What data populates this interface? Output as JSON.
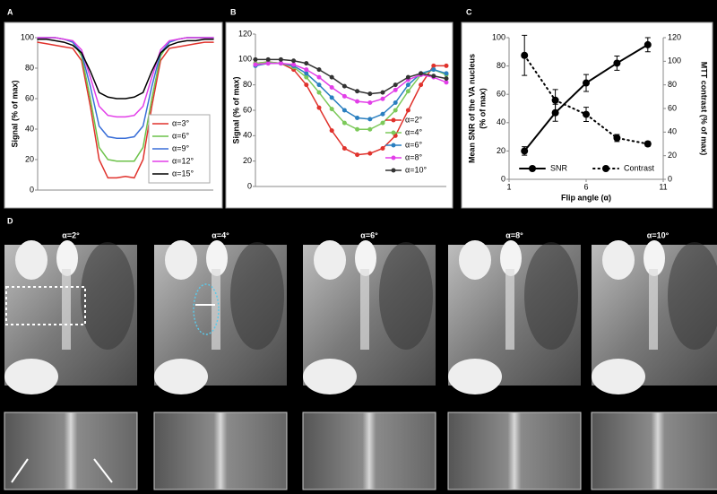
{
  "panel_labels": [
    "A",
    "B",
    "C",
    "D"
  ],
  "image_panel": {
    "titles": [
      "α=2°",
      "α=4°",
      "α=6°",
      "α=8°",
      "α=10°"
    ]
  },
  "chart_data": [
    {
      "type": "line",
      "y_label": "Signal (% of max)",
      "x": [
        0,
        1,
        2,
        3,
        4,
        5,
        6,
        7,
        8,
        9,
        10,
        11,
        12,
        13,
        14,
        15,
        16,
        17,
        18,
        19,
        20
      ],
      "xlim": [
        0,
        20
      ],
      "ylim": [
        0,
        100
      ],
      "yticks": [
        0,
        20,
        40,
        60,
        80,
        100
      ],
      "grid": false,
      "markers": false,
      "legend": "lower right",
      "series": [
        {
          "name": "α=3°",
          "color": "#e0322c",
          "values": [
            97,
            96,
            95,
            94,
            93,
            85,
            55,
            20,
            8,
            8,
            9,
            8,
            20,
            55,
            85,
            93,
            94,
            95,
            96,
            97,
            97
          ]
        },
        {
          "name": "α=6°",
          "color": "#6cc24a",
          "values": [
            100,
            100,
            100,
            99,
            97,
            88,
            60,
            28,
            20,
            19,
            19,
            19,
            28,
            60,
            88,
            97,
            99,
            100,
            100,
            100,
            100
          ]
        },
        {
          "name": "α=9°",
          "color": "#3a6fd8",
          "values": [
            100,
            100,
            100,
            99,
            97,
            90,
            68,
            42,
            35,
            34,
            34,
            35,
            42,
            68,
            90,
            97,
            99,
            100,
            100,
            100,
            100
          ]
        },
        {
          "name": "α=12°",
          "color": "#e23ee8",
          "values": [
            100,
            100,
            100,
            99,
            98,
            92,
            74,
            55,
            49,
            48,
            48,
            49,
            55,
            74,
            92,
            98,
            99,
            100,
            100,
            100,
            100
          ]
        },
        {
          "name": "α=15°",
          "color": "#000000",
          "values": [
            99,
            99,
            98,
            97,
            95,
            90,
            78,
            64,
            61,
            60,
            60,
            61,
            64,
            78,
            90,
            95,
            97,
            98,
            98,
            99,
            99
          ]
        }
      ]
    },
    {
      "type": "line",
      "y_label": "Signal (% of max)",
      "x": [
        0,
        1,
        2,
        3,
        4,
        5,
        6,
        7,
        8,
        9,
        10,
        11,
        12,
        13,
        14,
        15
      ],
      "xlim": [
        0,
        15
      ],
      "ylim": [
        0,
        120
      ],
      "yticks": [
        0,
        20,
        40,
        60,
        80,
        100,
        120
      ],
      "grid": false,
      "markers": true,
      "legend": "lower right",
      "series": [
        {
          "name": "α=2°",
          "color": "#e0322c",
          "values": [
            97,
            98,
            97,
            92,
            80,
            62,
            44,
            30,
            25,
            26,
            30,
            40,
            60,
            80,
            95,
            95
          ]
        },
        {
          "name": "α=4°",
          "color": "#7cc95a",
          "values": [
            97,
            98,
            97,
            94,
            86,
            74,
            61,
            50,
            45,
            45,
            50,
            60,
            75,
            88,
            92,
            88
          ]
        },
        {
          "name": "α=6°",
          "color": "#2a7fc0",
          "values": [
            95,
            97,
            97,
            95,
            89,
            80,
            70,
            60,
            54,
            53,
            57,
            66,
            80,
            89,
            92,
            89
          ]
        },
        {
          "name": "α=8°",
          "color": "#e23ee8",
          "values": [
            96,
            97,
            97,
            96,
            92,
            86,
            78,
            71,
            67,
            66,
            69,
            76,
            84,
            88,
            86,
            82
          ]
        },
        {
          "name": "α=10°",
          "color": "#333333",
          "values": [
            100,
            100,
            100,
            99,
            97,
            92,
            86,
            79,
            75,
            73,
            74,
            80,
            86,
            89,
            87,
            85
          ]
        }
      ]
    },
    {
      "type": "line",
      "x_label": "Flip angle (α)",
      "y_label": [
        "Mean SNR of the VA nucleus",
        "(% of max)"
      ],
      "y2_label": "MTT contrast (% of max)",
      "x": [
        2,
        4,
        6,
        8,
        10
      ],
      "xlim": [
        1,
        11
      ],
      "xticks": [
        1,
        6,
        11
      ],
      "ylim": [
        0,
        100
      ],
      "yticks": [
        0,
        20,
        40,
        60,
        80,
        100
      ],
      "y2lim": [
        0,
        120
      ],
      "y2ticks": [
        0,
        20,
        40,
        60,
        80,
        100,
        120
      ],
      "grid": false,
      "markers": true,
      "legend": "lower center",
      "series": [
        {
          "name": "SNR",
          "color": "#000000",
          "line_style": "solid",
          "values": [
            20,
            47,
            68,
            82,
            95
          ],
          "errors": [
            3,
            6,
            6,
            5,
            5
          ]
        },
        {
          "name": "Contrast",
          "color": "#000000",
          "line_style": "dotted",
          "axis": "y2",
          "values": [
            105,
            67,
            55,
            35,
            30
          ],
          "errors": [
            17,
            9,
            6,
            3,
            2
          ]
        }
      ]
    }
  ]
}
